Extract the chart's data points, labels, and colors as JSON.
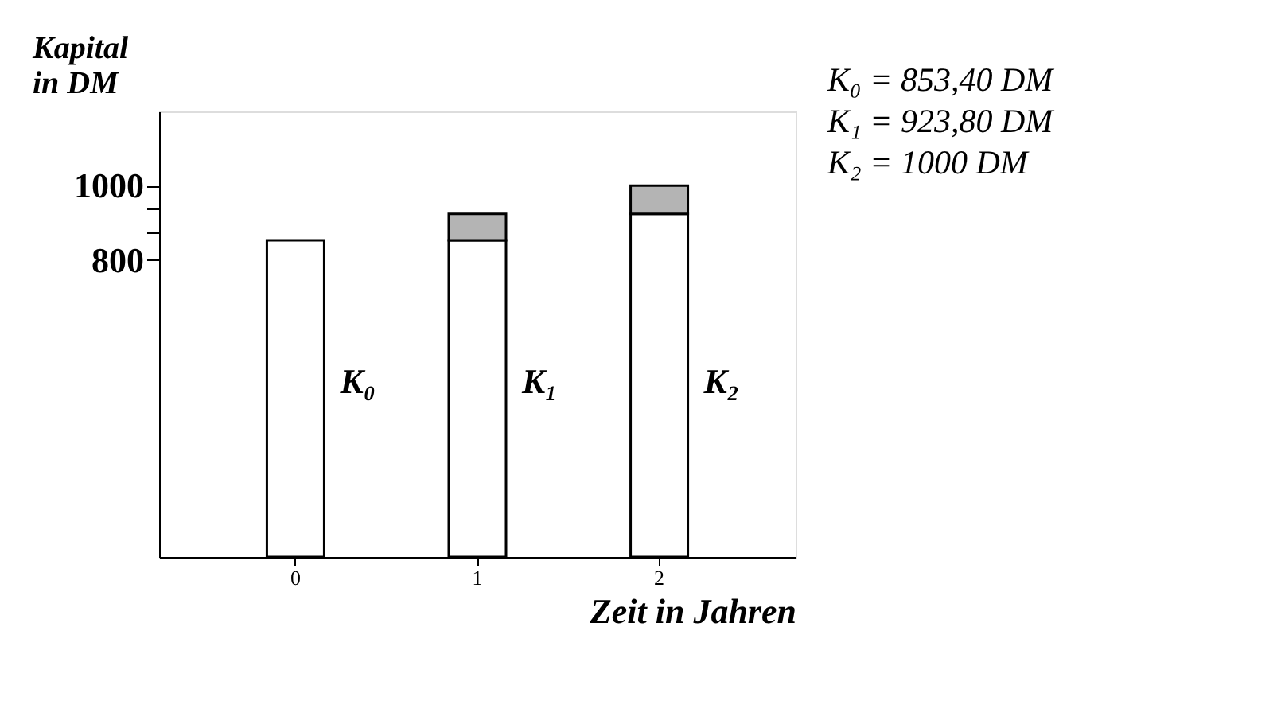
{
  "chart_data": {
    "type": "bar",
    "stacked": true,
    "ylabel": "Kapital in DM",
    "xlabel": "Zeit in Jahren",
    "categories": [
      "0",
      "1",
      "2"
    ],
    "series": [
      {
        "color": "#ffffff",
        "values": [
          853,
          853,
          924
        ]
      },
      {
        "color": "#b4b4b4",
        "values": [
          null,
          71,
          76
        ]
      }
    ],
    "ylim": [
      0,
      1200
    ],
    "yticks": [
      800,
      {
        "value": 875,
        "label": null
      },
      {
        "value": 940,
        "label": null
      },
      1000
    ],
    "grid": false,
    "legend": false,
    "annotations": [
      "K₀ = 853,40 DM",
      "K₁ = 923,80 DM",
      "K₂ = 1000 DM",
      "K₀",
      "K₁",
      "K₂"
    ]
  }
}
